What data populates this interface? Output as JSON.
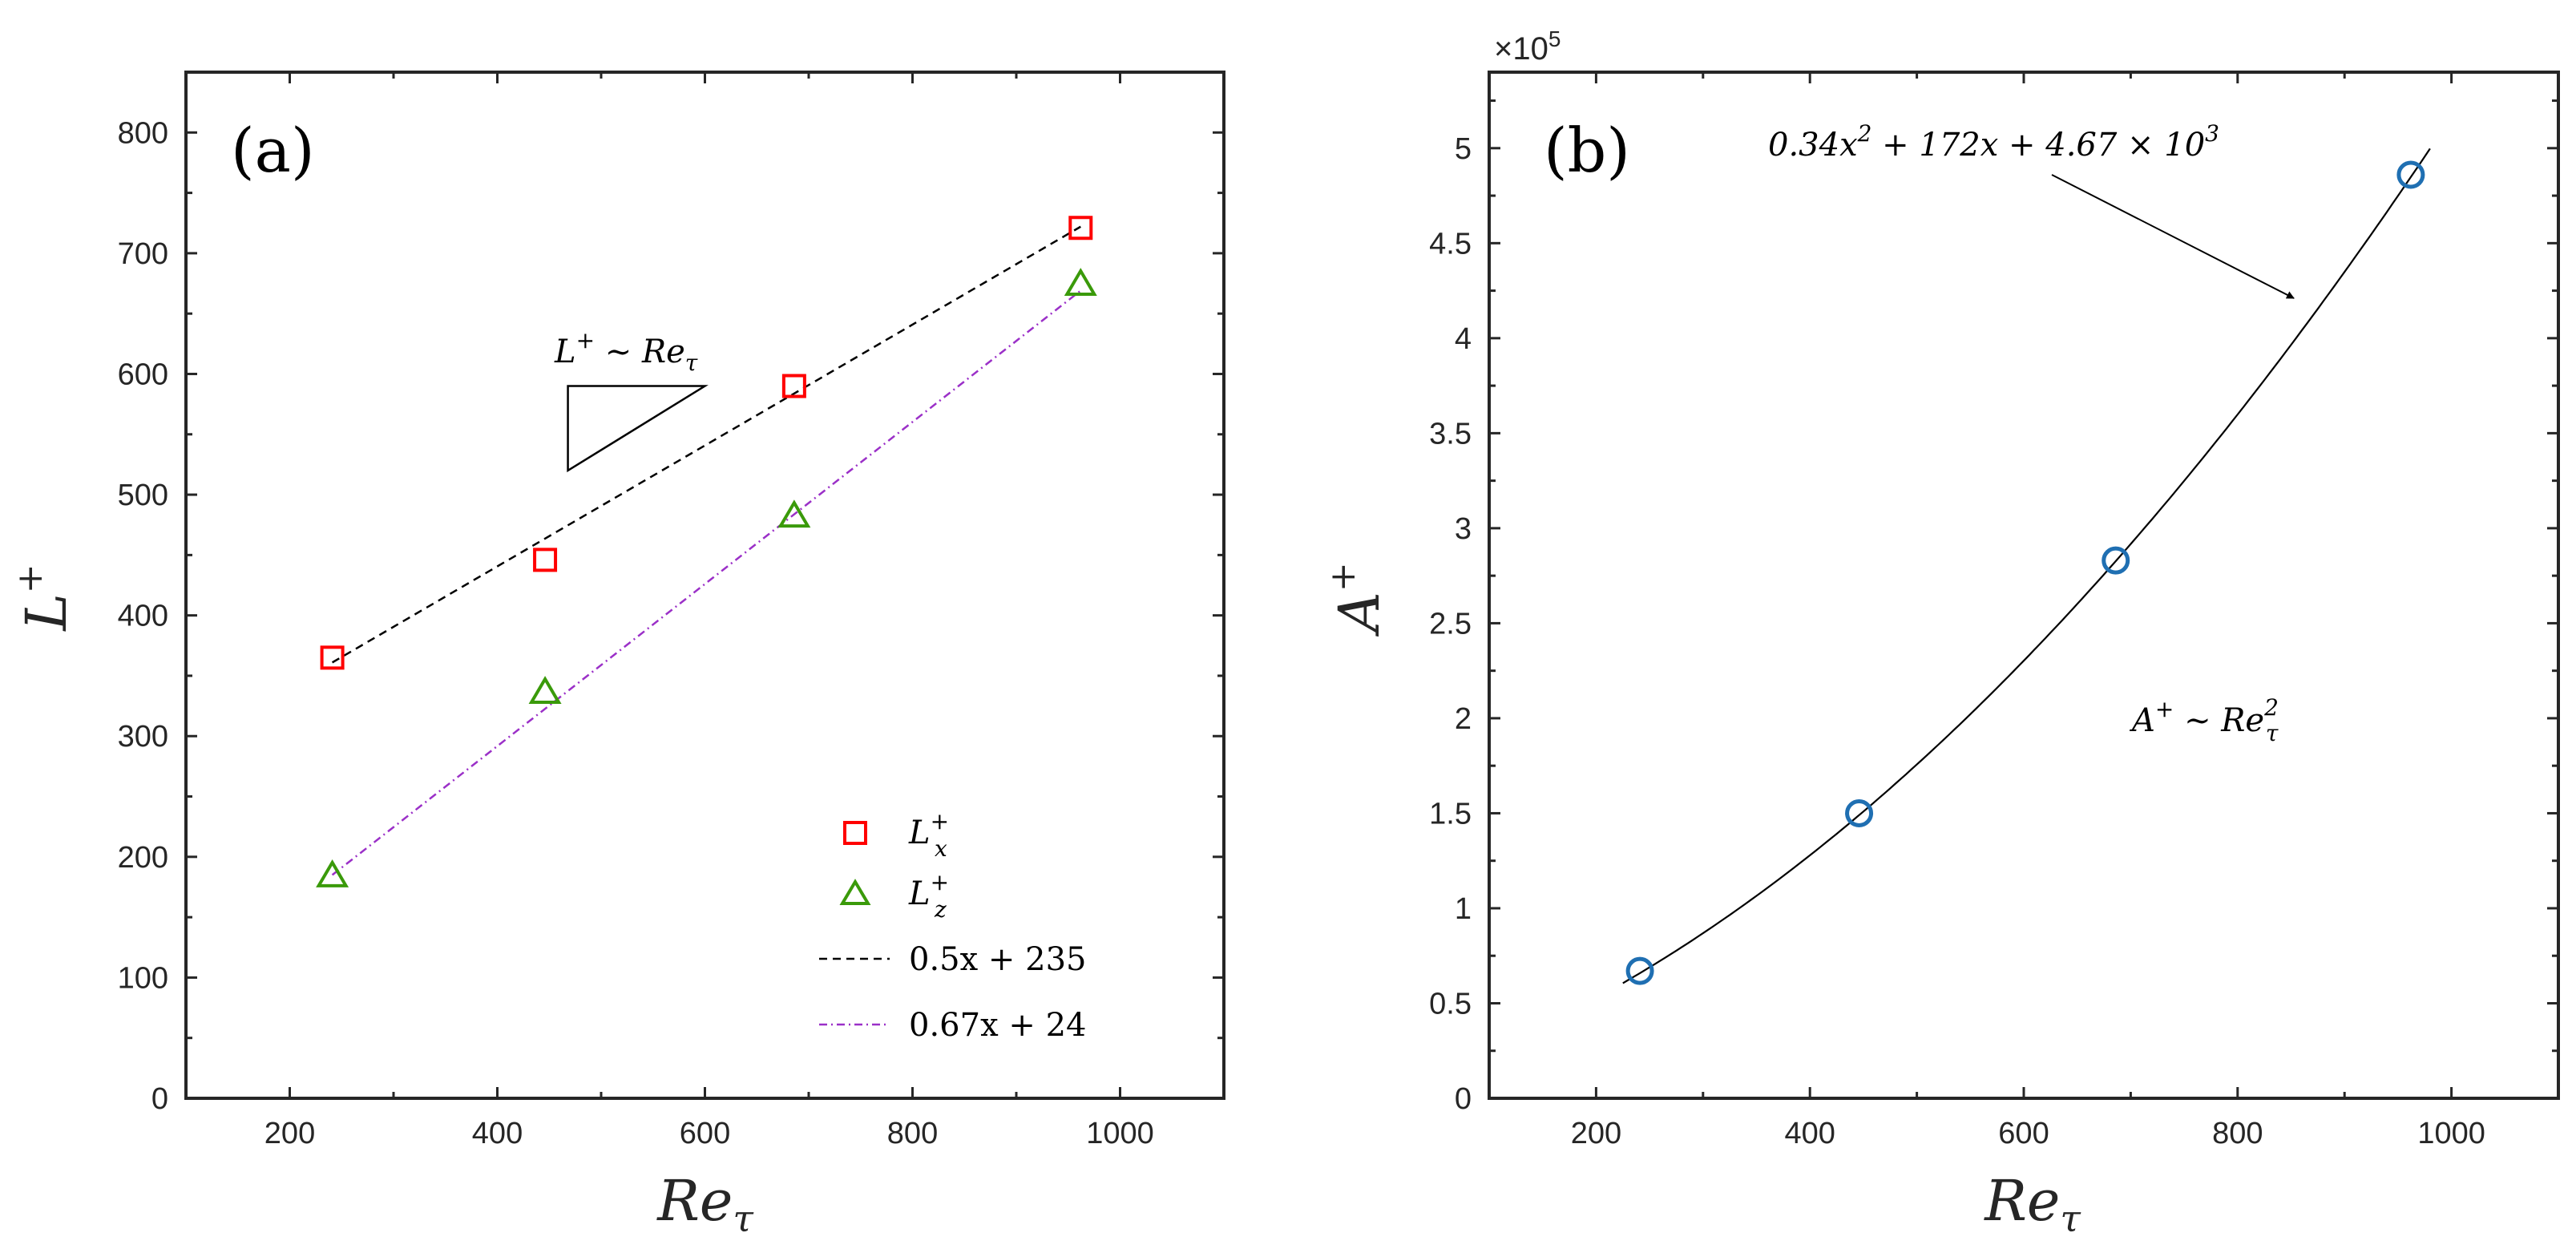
{
  "chart_data": [
    {
      "type": "scatter",
      "panel_label": "(a)",
      "xlabel": "Re_τ",
      "ylabel": "L⁺",
      "xlim": [
        100,
        1100
      ],
      "ylim": [
        0,
        850
      ],
      "xticks": [
        200,
        400,
        600,
        800,
        1000
      ],
      "yticks": [
        0,
        100,
        200,
        300,
        400,
        500,
        600,
        700,
        800
      ],
      "grid": false,
      "legend_position": "bottom-right",
      "series": [
        {
          "name": "L_x⁺",
          "marker": "square",
          "color": "#ff0000",
          "x": [
            241,
            446,
            686,
            962
          ],
          "y": [
            365,
            446,
            590,
            721
          ]
        },
        {
          "name": "L_z⁺",
          "marker": "triangle",
          "color": "#3a9a0a",
          "x": [
            241,
            446,
            686,
            962
          ],
          "y": [
            184,
            336,
            482,
            674
          ]
        },
        {
          "name": "0.5x + 235",
          "line": "dashed",
          "color": "#000000",
          "x": [
            241,
            962
          ],
          "y": [
            361,
            722
          ]
        },
        {
          "name": "0.67x + 24",
          "line": "dashdot",
          "color": "#9b30c8",
          "x": [
            241,
            962
          ],
          "y": [
            185,
            669
          ]
        }
      ],
      "annotation": {
        "text": "L⁺ ∼ Re_τ",
        "slope_triangle": [
          [
            468,
            520
          ],
          [
            468,
            590
          ],
          [
            600,
            590
          ]
        ]
      }
    },
    {
      "type": "scatter",
      "panel_label": "(b)",
      "xlabel": "Re_τ",
      "ylabel": "A⁺",
      "xlim": [
        100,
        1100
      ],
      "ylim": [
        0,
        5.4
      ],
      "y_multiplier": "×10^5",
      "xticks": [
        200,
        400,
        600,
        800,
        1000
      ],
      "yticks": [
        0,
        0.5,
        1,
        1.5,
        2,
        2.5,
        3,
        3.5,
        4,
        4.5,
        5
      ],
      "grid": false,
      "series": [
        {
          "name": "A⁺",
          "marker": "circle",
          "color": "#1f6fb2",
          "x": [
            241,
            446,
            686,
            962
          ],
          "y": [
            0.67,
            1.5,
            2.83,
            4.86
          ]
        },
        {
          "name": "fit",
          "line": "solid",
          "color": "#000000",
          "fit_coefficients": [
            0.34,
            172,
            4670
          ],
          "x_range": [
            225,
            980
          ]
        }
      ],
      "annotations": [
        {
          "text": "0.34x² + 172x + 4.67 × 10³"
        },
        {
          "text": "A⁺ ∼ Re_τ²"
        }
      ]
    }
  ]
}
